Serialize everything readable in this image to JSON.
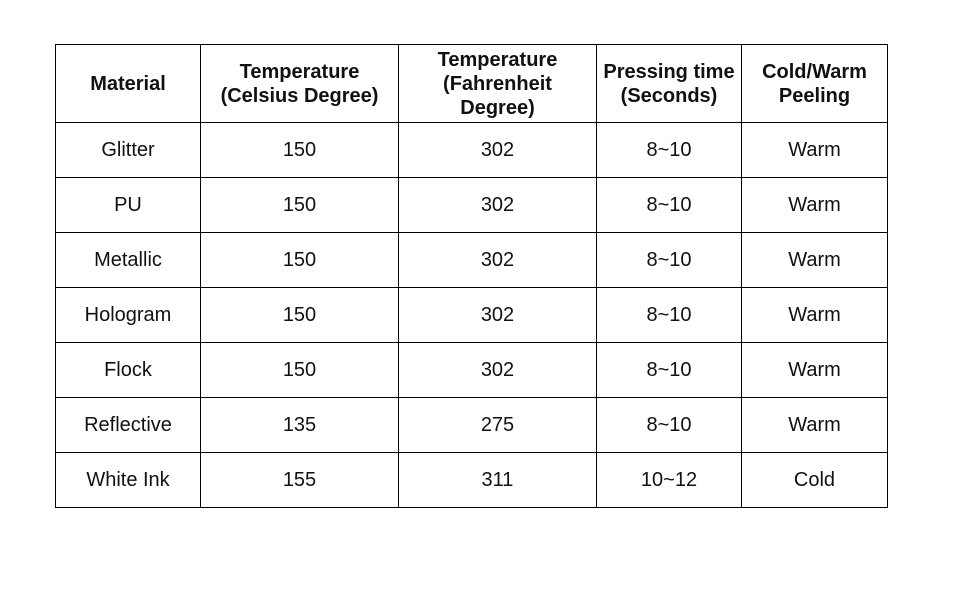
{
  "table": {
    "header": [
      [
        "Material"
      ],
      [
        "Temperature",
        "(Celsius Degree)"
      ],
      [
        "Temperature",
        "(Fahrenheit",
        "Degree)"
      ],
      [
        "Pressing time",
        "(Seconds)"
      ],
      [
        "Cold/Warm",
        "Peeling"
      ]
    ],
    "rows": [
      [
        "Glitter",
        150,
        302,
        "8~10",
        "Warm"
      ],
      [
        "PU",
        150,
        302,
        "8~10",
        "Warm"
      ],
      [
        "Metallic",
        150,
        302,
        "8~10",
        "Warm"
      ],
      [
        "Hologram",
        150,
        302,
        "8~10",
        "Warm"
      ],
      [
        "Flock",
        150,
        302,
        "8~10",
        "Warm"
      ],
      [
        "Reflective",
        135,
        275,
        "8~10",
        "Warm"
      ],
      [
        "White Ink",
        155,
        311,
        "10~12",
        "Cold"
      ]
    ]
  }
}
